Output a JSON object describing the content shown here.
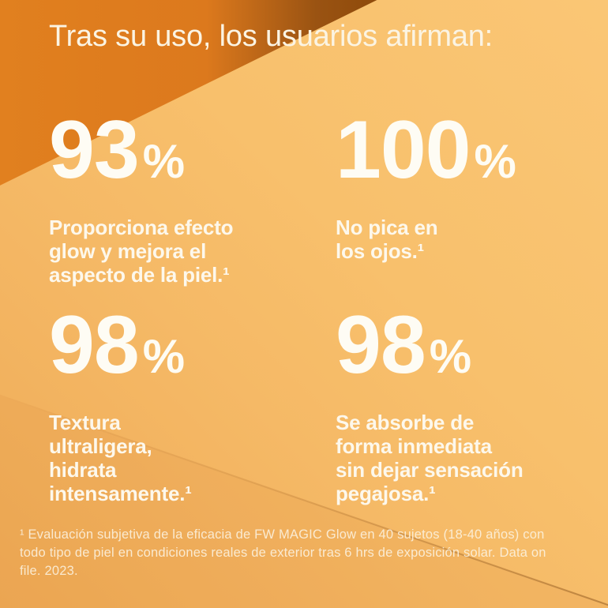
{
  "title": "Tras su uso, los usuarios afirman:",
  "stats": [
    {
      "value": "93",
      "unit": "%",
      "description": "Proporciona efecto\nglow y mejora el\naspecto de la piel.¹"
    },
    {
      "value": "100",
      "unit": "%",
      "description": "No pica en\nlos ojos.¹"
    },
    {
      "value": "98",
      "unit": "%",
      "description": "Textura\nultraligera,\nhidrata\nintensamente.¹"
    },
    {
      "value": "98",
      "unit": "%",
      "description": "Se absorbe de\nforma inmediata\nsin dejar sensación\npegajosa.¹"
    }
  ],
  "footnote": {
    "lines": [
      "¹ Evaluación subjetiva de la eficacia de FW MAGIC Glow en 40 sujetos (18-40 años) con",
      "todo tipo de piel en condiciones reales de exterior tras 6 hrs de exposición solar. Data on",
      "file. 2023."
    ]
  },
  "colors": {
    "background_amber_light": "#FAC675",
    "background_amber": "#F7BD69",
    "background_amber_deep": "#EFAB57",
    "corner_orange": "#E1801F",
    "corner_dark_brown": "#8E4A10",
    "text_warm_white": "#FDF8EC"
  }
}
